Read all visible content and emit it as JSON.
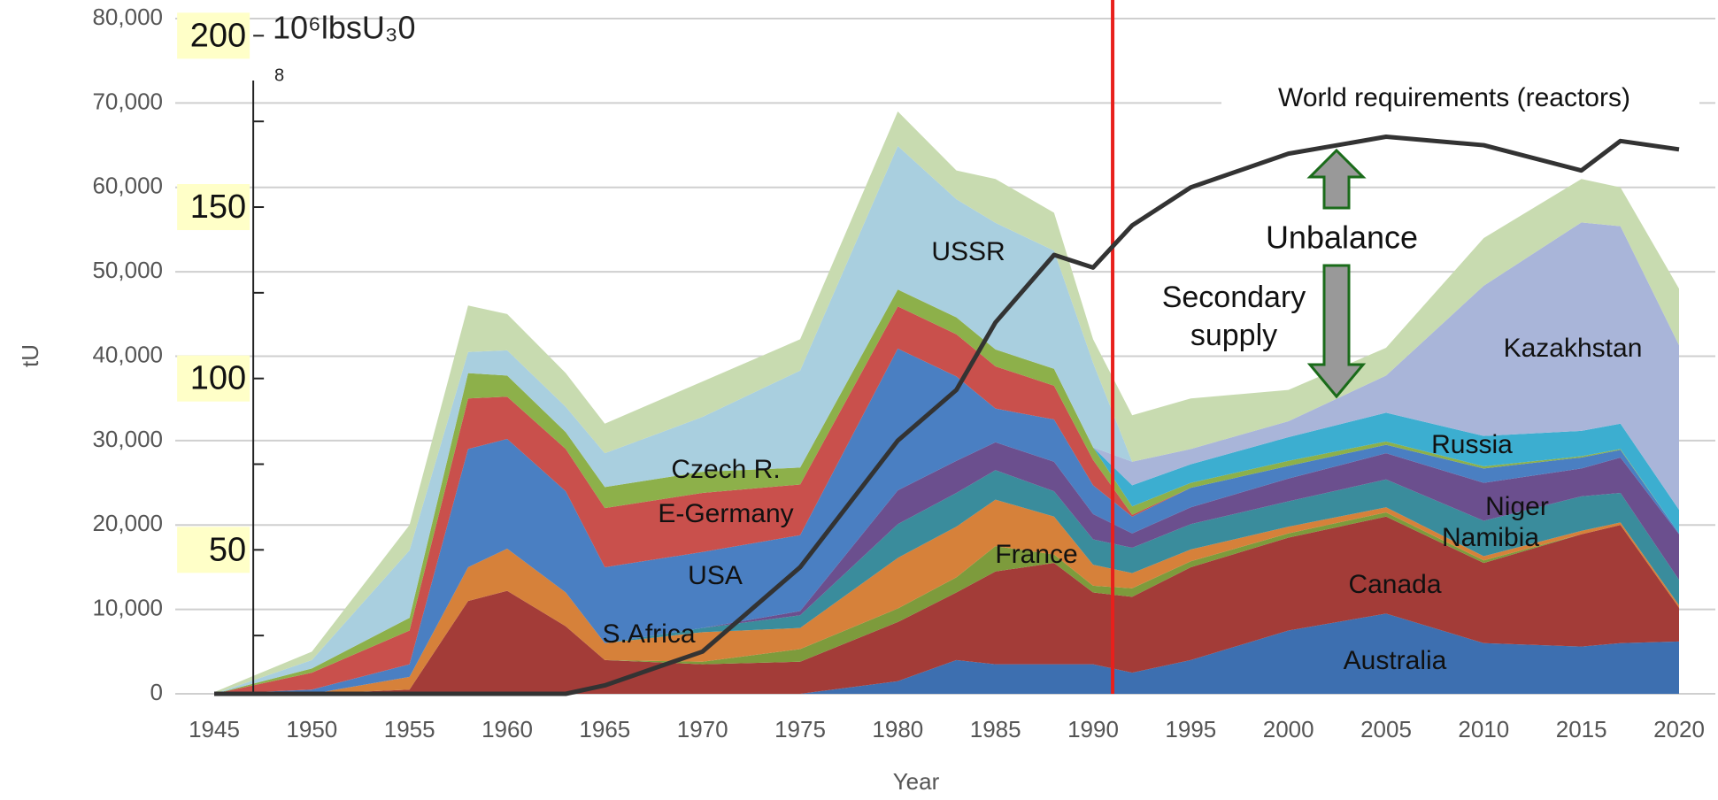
{
  "chart_data": {
    "type": "stacked_area",
    "x_label": "Year",
    "y_label": "tU",
    "y2_label": "10⁶lbsU₃0",
    "y2_label_sub": "8",
    "annotations": {
      "requirements": "World requirements (reactors)",
      "unbalance": "Unbalance",
      "secondary_1": "Secondary",
      "secondary_2": "supply"
    },
    "x": [
      1945,
      1950,
      1955,
      1958,
      1960,
      1963,
      1965,
      1970,
      1975,
      1980,
      1983,
      1985,
      1988,
      1990,
      1992,
      1995,
      2000,
      2005,
      2010,
      2015,
      2017,
      2020
    ],
    "xlim": [
      1945,
      2020
    ],
    "xticks": [
      1945,
      1950,
      1955,
      1960,
      1965,
      1970,
      1975,
      1980,
      1985,
      1990,
      1995,
      2000,
      2005,
      2010,
      2015,
      2020
    ],
    "ylim": [
      0,
      80000
    ],
    "yticks": [
      0,
      {
        "value": 10000,
        "label": "10,000"
      },
      {
        "value": 20000,
        "label": "20,000"
      },
      {
        "value": 30000,
        "label": "30,000"
      },
      {
        "value": 40000,
        "label": "40,000"
      },
      {
        "value": 50000,
        "label": "50,000"
      },
      {
        "value": 60000,
        "label": "60,000"
      },
      {
        "value": 70000,
        "label": "70,000"
      },
      {
        "value": 80000,
        "label": "80,000"
      }
    ],
    "y2lim": [
      8,
      205
    ],
    "y2ticks": [
      50,
      100,
      150,
      200
    ],
    "y2minor": [
      25,
      75,
      125,
      175
    ],
    "grid": true,
    "divider": {
      "x": 1991,
      "color": "#e8201c"
    },
    "series": [
      {
        "name": "Australia",
        "color": "#3d6fb0",
        "values": [
          0,
          0,
          0,
          0,
          200,
          0,
          0,
          0,
          0,
          1500,
          4000,
          3500,
          3500,
          3500,
          2500,
          4000,
          7500,
          9500,
          6000,
          5600,
          6000,
          6200
        ]
      },
      {
        "name": "Canada",
        "color": "#a33c38",
        "values": [
          0,
          0,
          500,
          11000,
          12000,
          8000,
          4000,
          3500,
          3800,
          7000,
          8000,
          11000,
          12000,
          8500,
          9000,
          11000,
          11000,
          11500,
          9500,
          13300,
          14000,
          4000
        ]
      },
      {
        "name": "France",
        "color": "#7d9b3c",
        "values": [
          0,
          0,
          0,
          0,
          0,
          0,
          0,
          300,
          1500,
          1600,
          1800,
          3000,
          1000,
          800,
          1000,
          700,
          500,
          500,
          300,
          0,
          0,
          0
        ]
      },
      {
        "name": "S.Africa",
        "color": "#d6813a",
        "values": [
          0,
          0,
          1500,
          4000,
          5000,
          4000,
          2000,
          3500,
          2500,
          6000,
          6000,
          5500,
          4500,
          2500,
          1800,
          1400,
          800,
          600,
          500,
          400,
          300,
          300
        ]
      },
      {
        "name": "Niger",
        "color": "#3a8c9c",
        "values": [
          0,
          0,
          0,
          0,
          0,
          0,
          0,
          500,
          1500,
          4000,
          4000,
          3500,
          3000,
          3000,
          3000,
          3000,
          3000,
          3300,
          4200,
          4100,
          3500,
          3000
        ]
      },
      {
        "name": "Namibia",
        "color": "#6b4f8e",
        "values": [
          0,
          0,
          0,
          0,
          0,
          0,
          0,
          0,
          500,
          4000,
          3800,
          3300,
          3500,
          3000,
          1700,
          2000,
          2700,
          3100,
          4500,
          3300,
          4200,
          5400
        ]
      },
      {
        "name": "USA",
        "color": "#4a7fc2",
        "values": [
          0,
          500,
          1500,
          14000,
          13000,
          12000,
          9000,
          9000,
          9000,
          16800,
          10000,
          4000,
          5000,
          3400,
          2000,
          2300,
          1500,
          1000,
          1700,
          1300,
          900,
          100
        ]
      },
      {
        "name": "E-Germany",
        "color": "#c9504c",
        "values": [
          0,
          2000,
          4000,
          6000,
          5000,
          5000,
          7000,
          7000,
          6000,
          5000,
          5000,
          5000,
          4000,
          3000,
          200,
          0,
          0,
          0,
          0,
          0,
          0,
          0
        ]
      },
      {
        "name": "Czech R.",
        "color": "#8db04a",
        "values": [
          0,
          500,
          1500,
          3000,
          2500,
          2000,
          2500,
          2500,
          2000,
          2000,
          2000,
          2000,
          2000,
          1500,
          1000,
          600,
          600,
          400,
          250,
          150,
          100,
          0
        ]
      },
      {
        "name": "Russia",
        "color": "#3caed0",
        "values": [
          0,
          0,
          0,
          0,
          0,
          0,
          0,
          0,
          0,
          0,
          0,
          0,
          0,
          0,
          2500,
          2200,
          2800,
          3400,
          3600,
          3000,
          3000,
          2800
        ]
      },
      {
        "name": "Kazakhstan",
        "color": "#a9b5d9",
        "values": [
          0,
          0,
          0,
          0,
          0,
          0,
          0,
          0,
          0,
          0,
          0,
          0,
          0,
          0,
          2800,
          1800,
          1900,
          4400,
          17800,
          24700,
          23400,
          19500
        ]
      },
      {
        "name": "USSR",
        "color": "#a9cfdf",
        "values": [
          0,
          1000,
          8000,
          2500,
          3000,
          3000,
          4000,
          6500,
          11500,
          17000,
          14000,
          15000,
          14000,
          10000,
          0,
          0,
          0,
          0,
          0,
          0,
          0,
          0
        ]
      },
      {
        "name": null,
        "color": "#c8dbb0",
        "values": [
          200,
          1000,
          3000,
          5500,
          4300,
          4000,
          3500,
          4200,
          3700,
          4100,
          3400,
          5200,
          4500,
          2800,
          5500,
          6000,
          3700,
          3300,
          5650,
          5150,
          4600,
          6700
        ]
      }
    ],
    "line": {
      "name": "World requirements (reactors)",
      "color": "#333333",
      "values": [
        0,
        0,
        0,
        0,
        0,
        0,
        1000,
        5000,
        15000,
        30000,
        36000,
        44000,
        52000,
        50500,
        55500,
        60000,
        64000,
        66000,
        65000,
        62000,
        65500,
        64500
      ]
    }
  }
}
